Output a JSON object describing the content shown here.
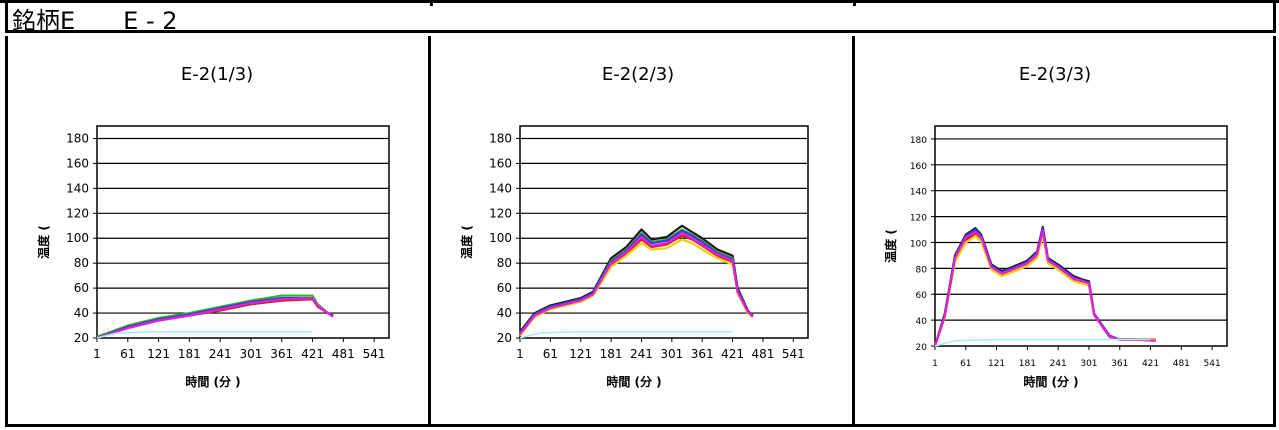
{
  "header": {
    "title": "銘柄E　　E - 2"
  },
  "chart_data": [
    {
      "type": "line",
      "title": "E-2(1/3)",
      "xlabel": "時間 (分 )",
      "ylabel": "温度 (",
      "yticks": [
        20,
        40,
        60,
        80,
        100,
        120,
        140,
        160,
        180
      ],
      "xticks": [
        1,
        61,
        121,
        181,
        241,
        301,
        361,
        421,
        481,
        541
      ],
      "ylim": [
        20,
        190
      ],
      "xlim": [
        1,
        570
      ],
      "grid": "horizontal",
      "series": [
        {
          "color": "#1a1a1a",
          "x": [
            1,
            61,
            121,
            181,
            241,
            301,
            361,
            421,
            431,
            451,
            461
          ],
          "y": [
            20,
            29,
            35,
            39,
            43,
            48,
            52,
            52,
            46,
            40,
            38
          ]
        },
        {
          "color": "#2db82d",
          "x": [
            1,
            61,
            121,
            181,
            241,
            301,
            361,
            421,
            431,
            451,
            461
          ],
          "y": [
            21,
            30,
            36,
            40,
            45,
            50,
            54,
            54,
            47,
            40,
            38
          ]
        },
        {
          "color": "#cc2222",
          "x": [
            1,
            61,
            121,
            181,
            241,
            301,
            361,
            421,
            431,
            451,
            461
          ],
          "y": [
            20,
            28,
            34,
            38,
            42,
            47,
            50,
            51,
            45,
            40,
            38
          ]
        },
        {
          "color": "#3b3bd6",
          "x": [
            1,
            61,
            121,
            181,
            241,
            301,
            361,
            421,
            431,
            451,
            461
          ],
          "y": [
            20,
            29,
            35,
            39,
            44,
            49,
            52,
            52,
            46,
            40,
            38
          ]
        },
        {
          "color": "#e020e0",
          "x": [
            1,
            61,
            121,
            181,
            241,
            301,
            361,
            421,
            431,
            451,
            461
          ],
          "y": [
            20,
            28,
            34,
            38,
            43,
            48,
            51,
            52,
            46,
            40,
            37
          ]
        },
        {
          "color": "#9ff0f0",
          "x": [
            1,
            40,
            120,
            241,
            361,
            421
          ],
          "y": [
            20,
            24,
            25,
            25,
            25,
            25
          ]
        }
      ]
    },
    {
      "type": "line",
      "title": "E-2(2/3)",
      "xlabel": "時間 (分 )",
      "ylabel": "温度 (",
      "yticks": [
        20,
        40,
        60,
        80,
        100,
        120,
        140,
        160,
        180
      ],
      "xticks": [
        1,
        61,
        121,
        181,
        241,
        301,
        361,
        421,
        481,
        541
      ],
      "ylim": [
        20,
        190
      ],
      "xlim": [
        1,
        570
      ],
      "grid": "horizontal",
      "series": [
        {
          "color": "#1a1a1a",
          "x": [
            1,
            30,
            60,
            121,
            145,
            181,
            211,
            241,
            261,
            291,
            321,
            341,
            361,
            391,
            421,
            431,
            451,
            461
          ],
          "y": [
            25,
            40,
            46,
            52,
            57,
            84,
            93,
            107,
            99,
            101,
            110,
            105,
            100,
            91,
            86,
            60,
            42,
            38
          ]
        },
        {
          "color": "#2db82d",
          "x": [
            1,
            30,
            60,
            121,
            145,
            181,
            211,
            241,
            261,
            291,
            321,
            341,
            361,
            391,
            421,
            431,
            451,
            461
          ],
          "y": [
            24,
            39,
            45,
            51,
            56,
            82,
            91,
            104,
            97,
            99,
            107,
            103,
            98,
            89,
            84,
            58,
            41,
            38
          ]
        },
        {
          "color": "#3b3bd6",
          "x": [
            1,
            30,
            60,
            121,
            145,
            181,
            211,
            241,
            261,
            291,
            321,
            341,
            361,
            391,
            421,
            431,
            451,
            461
          ],
          "y": [
            24,
            39,
            45,
            51,
            56,
            81,
            90,
            103,
            96,
            98,
            106,
            102,
            97,
            88,
            83,
            58,
            41,
            38
          ]
        },
        {
          "color": "#cc2222",
          "x": [
            1,
            30,
            60,
            121,
            145,
            181,
            211,
            241,
            261,
            291,
            321,
            341,
            361,
            391,
            421,
            431,
            451,
            461
          ],
          "y": [
            23,
            38,
            44,
            50,
            55,
            79,
            88,
            99,
            93,
            95,
            102,
            99,
            94,
            86,
            81,
            57,
            41,
            38
          ]
        },
        {
          "color": "#f0d000",
          "x": [
            1,
            30,
            60,
            121,
            145,
            181,
            211,
            241,
            261,
            291,
            321,
            341,
            361,
            391,
            421,
            431,
            451,
            461
          ],
          "y": [
            22,
            37,
            43,
            49,
            54,
            77,
            86,
            96,
            91,
            92,
            99,
            96,
            91,
            84,
            79,
            56,
            40,
            37
          ]
        },
        {
          "color": "#e020e0",
          "x": [
            1,
            30,
            60,
            121,
            145,
            181,
            211,
            241,
            261,
            291,
            321,
            341,
            361,
            391,
            421,
            431,
            451,
            461
          ],
          "y": [
            23,
            38,
            44,
            50,
            55,
            80,
            89,
            101,
            94,
            96,
            104,
            100,
            95,
            87,
            82,
            57,
            41,
            37
          ]
        },
        {
          "color": "#9ff0f0",
          "x": [
            1,
            40,
            120,
            241,
            361,
            421
          ],
          "y": [
            20,
            24,
            25,
            25,
            25,
            25
          ]
        }
      ]
    },
    {
      "type": "line",
      "title": "E-2(3/3)",
      "xlabel": "時間 (分 )",
      "ylabel": "温度 (",
      "yticks": [
        20,
        40,
        60,
        80,
        100,
        120,
        140,
        160,
        180
      ],
      "xticks": [
        1,
        61,
        121,
        181,
        241,
        301,
        361,
        421,
        481,
        541
      ],
      "ylim": [
        20,
        190
      ],
      "xlim": [
        1,
        570
      ],
      "grid": "horizontal",
      "series": [
        {
          "color": "#1a1a1a",
          "x": [
            1,
            20,
            40,
            61,
            80,
            91,
            111,
            131,
            151,
            181,
            200,
            211,
            221,
            241,
            271,
            291,
            301,
            311,
            341,
            361,
            381,
            431
          ],
          "y": [
            20,
            45,
            90,
            106,
            111,
            106,
            83,
            78,
            81,
            86,
            93,
            112,
            88,
            83,
            74,
            71,
            70,
            45,
            28,
            25,
            25,
            25
          ]
        },
        {
          "color": "#3b3bd6",
          "x": [
            1,
            20,
            40,
            61,
            80,
            91,
            111,
            131,
            151,
            181,
            200,
            211,
            221,
            241,
            271,
            291,
            301,
            311,
            341,
            361,
            381,
            431
          ],
          "y": [
            20,
            44,
            89,
            105,
            110,
            105,
            82,
            77,
            80,
            85,
            92,
            111,
            87,
            82,
            73,
            70,
            69,
            45,
            28,
            25,
            25,
            25
          ]
        },
        {
          "color": "#cc2222",
          "x": [
            1,
            20,
            40,
            61,
            80,
            91,
            111,
            131,
            151,
            181,
            200,
            211,
            221,
            241,
            271,
            291,
            301,
            311,
            341,
            361,
            381,
            431
          ],
          "y": [
            20,
            43,
            87,
            102,
            107,
            103,
            80,
            75,
            78,
            83,
            90,
            108,
            85,
            80,
            71,
            69,
            68,
            44,
            27,
            25,
            25,
            25
          ]
        },
        {
          "color": "#f0d000",
          "x": [
            1,
            20,
            40,
            61,
            80,
            91,
            111,
            131,
            151,
            181,
            200,
            211,
            221,
            241,
            271,
            291,
            301,
            311,
            341,
            361,
            381,
            431
          ],
          "y": [
            20,
            42,
            85,
            100,
            105,
            101,
            79,
            74,
            77,
            82,
            88,
            106,
            84,
            79,
            70,
            68,
            67,
            44,
            27,
            25,
            25,
            25
          ]
        },
        {
          "color": "#e020e0",
          "x": [
            1,
            20,
            40,
            61,
            80,
            91,
            111,
            131,
            151,
            181,
            200,
            211,
            221,
            241,
            271,
            291,
            301,
            311,
            341,
            361,
            381,
            431
          ],
          "y": [
            20,
            43,
            88,
            104,
            108,
            104,
            81,
            76,
            79,
            84,
            91,
            109,
            86,
            81,
            72,
            70,
            68,
            44,
            27,
            25,
            25,
            24
          ]
        },
        {
          "color": "#9ff0f0",
          "x": [
            1,
            40,
            120,
            241,
            361,
            421
          ],
          "y": [
            20,
            24,
            25,
            25,
            25,
            25
          ]
        }
      ]
    }
  ]
}
